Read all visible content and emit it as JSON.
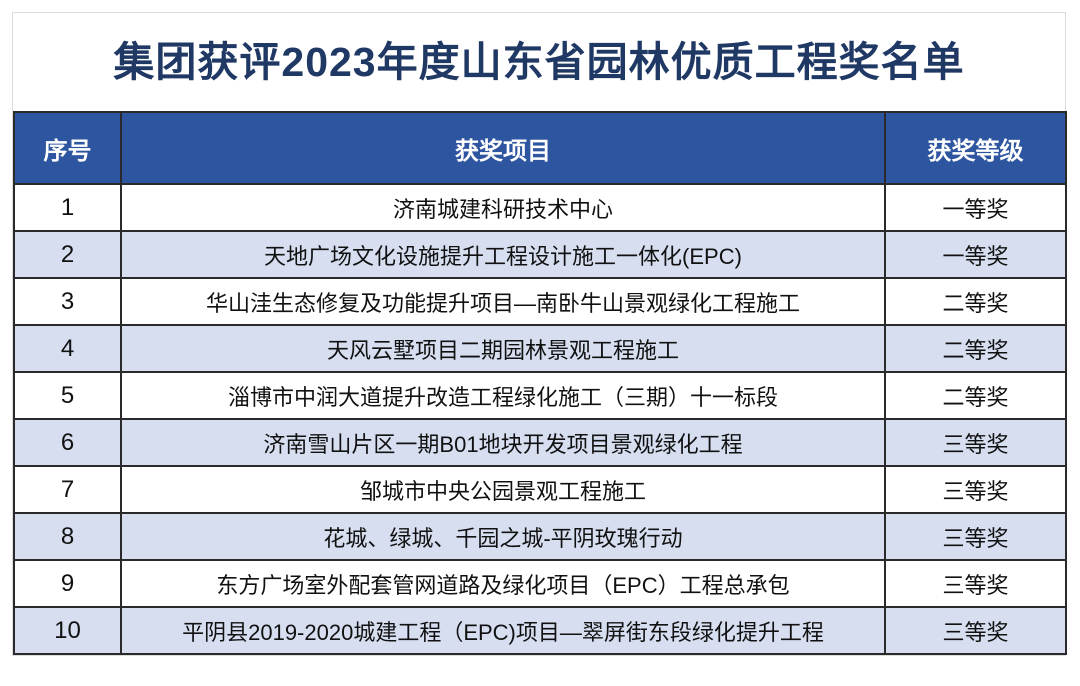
{
  "page": {
    "title": "集团获评2023年度山东省园林优质工程奖名单"
  },
  "table": {
    "columns": [
      {
        "label": "序号"
      },
      {
        "label": "获奖项目"
      },
      {
        "label": "获奖等级"
      }
    ],
    "rows": [
      {
        "index": "1",
        "project": "济南城建科研技术中心",
        "grade": "一等奖"
      },
      {
        "index": "2",
        "project": "天地广场文化设施提升工程设计施工一体化(EPC)",
        "grade": "一等奖"
      },
      {
        "index": "3",
        "project": "华山洼生态修复及功能提升项目—南卧牛山景观绿化工程施工",
        "grade": "二等奖"
      },
      {
        "index": "4",
        "project": "天风云墅项目二期园林景观工程施工",
        "grade": "二等奖"
      },
      {
        "index": "5",
        "project": "淄博市中润大道提升改造工程绿化施工（三期）十一标段",
        "grade": "二等奖"
      },
      {
        "index": "6",
        "project": "济南雪山片区一期B01地块开发项目景观绿化工程",
        "grade": "三等奖"
      },
      {
        "index": "7",
        "project": "邹城市中央公园景观工程施工",
        "grade": "三等奖"
      },
      {
        "index": "8",
        "project": "花城、绿城、千园之城-平阴玫瑰行动",
        "grade": "三等奖"
      },
      {
        "index": "9",
        "project": "东方广场室外配套管网道路及绿化项目（EPC）工程总承包",
        "grade": "三等奖"
      },
      {
        "index": "10",
        "project": "平阴县2019-2020城建工程（EPC)项目—翠屏街东段绿化提升工程",
        "grade": "三等奖"
      }
    ]
  },
  "colors": {
    "title_text": "#1F3864",
    "header_bg": "#2E55A0",
    "header_text": "#FFFFFF",
    "row_bg": "#FFFFFF",
    "row_alt_bg": "#D6DEF0",
    "table_border": "#2A2A2A",
    "card_border": "#DCDCDC",
    "cell_text": "#111111"
  }
}
